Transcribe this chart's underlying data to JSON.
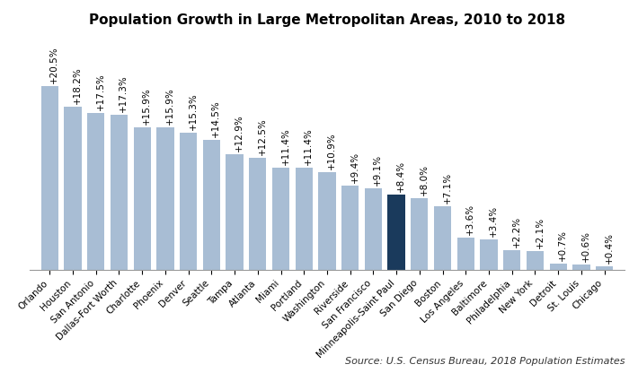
{
  "title": "Population Growth in Large Metropolitan Areas, 2010 to 2018",
  "source": "Source: U.S. Census Bureau, 2018 Population Estimates",
  "categories": [
    "Orlando",
    "Houston",
    "San Antonio",
    "Dallas-Fort Worth",
    "Charlotte",
    "Phoenix",
    "Denver",
    "Seattle",
    "Tampa",
    "Atlanta",
    "Miami",
    "Portland",
    "Washington",
    "Riverside",
    "San Francisco",
    "Minneapolis-Saint Paul",
    "San Diego",
    "Boston",
    "Los Angeles",
    "Baltimore",
    "Philadelphia",
    "New York",
    "Detroit",
    "St. Louis",
    "Chicago"
  ],
  "values": [
    20.5,
    18.2,
    17.5,
    17.3,
    15.9,
    15.9,
    15.3,
    14.5,
    12.9,
    12.5,
    11.4,
    11.4,
    10.9,
    9.4,
    9.1,
    8.4,
    8.0,
    7.1,
    3.6,
    3.4,
    2.2,
    2.1,
    0.7,
    0.6,
    0.4
  ],
  "labels": [
    "+20.5%",
    "+18.2%",
    "+17.5%",
    "+17.3%",
    "+15.9%",
    "+15.9%",
    "+15.3%",
    "+14.5%",
    "+12.9%",
    "+12.5%",
    "+11.4%",
    "+11.4%",
    "+10.9%",
    "+9.4%",
    "+9.1%",
    "+8.4%",
    "+8.0%",
    "+7.1%",
    "+3.6%",
    "+3.4%",
    "+2.2%",
    "+2.1%",
    "+0.7%",
    "+0.6%",
    "+0.4%"
  ],
  "highlight_index": 15,
  "bar_color": "#a8bdd4",
  "highlight_color": "#1a3a5c",
  "background_color": "#ffffff",
  "title_fontsize": 11,
  "label_fontsize": 7.5,
  "tick_fontsize": 7.5,
  "source_fontsize": 8
}
